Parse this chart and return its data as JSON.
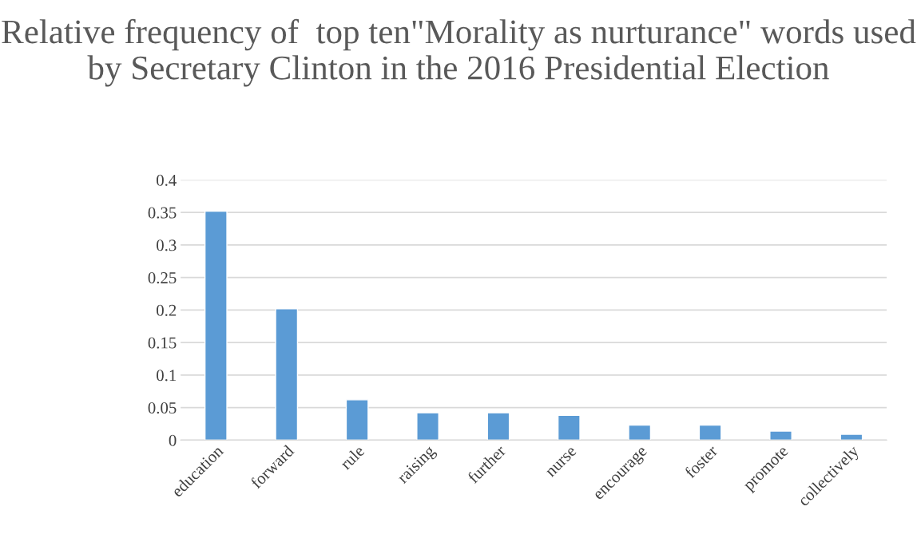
{
  "chart_data": {
    "type": "bar",
    "title": "Relative frequency of  top ten\"Morality as nurturance\" words used by Secretary Clinton in the 2016 Presidential Election",
    "categories": [
      "education",
      "forward",
      "rule",
      "raising",
      "further",
      "nurse",
      "encourage",
      "foster",
      "promote",
      "collectively"
    ],
    "values": [
      0.352,
      0.202,
      0.062,
      0.042,
      0.042,
      0.038,
      0.023,
      0.023,
      0.014,
      0.009
    ],
    "color": "#5b9bd5",
    "ylim": [
      0,
      0.4
    ],
    "yticks": [
      0,
      {
        "value": 0.05,
        "label": "0.05"
      },
      {
        "value": 0.1,
        "label": "0.1"
      },
      {
        "value": 0.15,
        "label": "0.15"
      },
      {
        "value": 0.2,
        "label": "0.2"
      },
      {
        "value": 0.25,
        "label": "0.25"
      },
      {
        "value": 0.3,
        "label": "0.3"
      },
      {
        "value": 0.35,
        "label": "0.35"
      },
      {
        "value": 0.4,
        "label": "0.4"
      }
    ],
    "grid": "y"
  }
}
